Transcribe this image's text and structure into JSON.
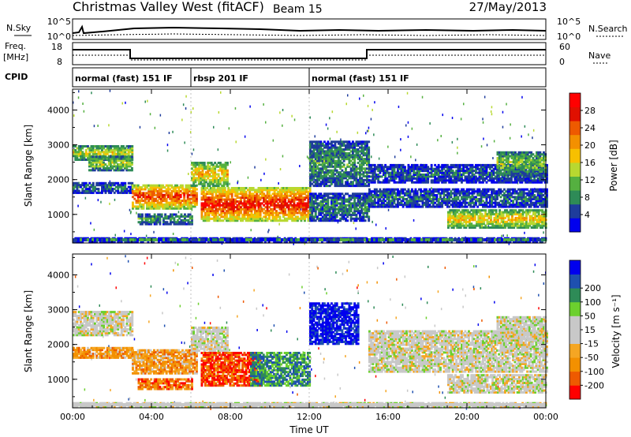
{
  "header": {
    "station": "Christmas Valley West (fitACF)",
    "beam": "Beam 15",
    "date": "27/May/2013"
  },
  "strip": {
    "nsky_label": "N.Sky",
    "nsky_ticks": [
      "10^5",
      "10^0"
    ],
    "nsearch_label": "N.Search",
    "nsearch_ticks": [
      "10^5",
      "10^0"
    ],
    "freq_label_1": "Freq.",
    "freq_label_2": "[MHz]",
    "freq_ticks": [
      "18",
      "8"
    ],
    "nave_label": "Nave",
    "nave_ticks": [
      "60",
      "0"
    ],
    "cpid_label": "CPID"
  },
  "cpid_segments": [
    {
      "label": "normal (fast) 151 IF",
      "start_h": 0,
      "end_h": 6
    },
    {
      "label": "rbsp 201 IF",
      "start_h": 6,
      "end_h": 12
    },
    {
      "label": "normal (fast) 151 IF",
      "start_h": 12,
      "end_h": 24
    }
  ],
  "colors": {
    "power": [
      "#0000ee",
      "#1e3c9c",
      "#2e8b57",
      "#55b040",
      "#b8d830",
      "#f7c000",
      "#f39000",
      "#ee5a00",
      "#e01000",
      "#ff0000"
    ],
    "velocity": [
      "#ff0000",
      "#ee5a00",
      "#f39000",
      "#f5a623",
      "#c8c8c8",
      "#c8c8c8",
      "#6cd02e",
      "#2e8b57",
      "#1e50b0",
      "#0000ee"
    ]
  },
  "chart_data": [
    {
      "type": "heatmap",
      "name": "power",
      "xlabel": "Time UT",
      "ylabel": "Slant Range [km]",
      "xlim": [
        0,
        24
      ],
      "ylim": [
        180,
        4600
      ],
      "x_ticks": [
        "00:00",
        "04:00",
        "08:00",
        "12:00",
        "16:00",
        "20:00",
        "00:00"
      ],
      "y_ticks": [
        1000,
        2000,
        3000,
        4000
      ],
      "colorbar_label": "Power [dB]",
      "colorbar_ticks": [
        "4",
        "8",
        "12",
        "16",
        "20",
        "24",
        "28"
      ],
      "colorbar_range": [
        0,
        32
      ],
      "bands": [
        {
          "t0": 0.0,
          "t1": 3.0,
          "r0": 2550,
          "r1": 2950,
          "level": 0.5
        },
        {
          "t0": 0.8,
          "t1": 3.0,
          "r0": 2250,
          "r1": 2650,
          "level": 0.45
        },
        {
          "t0": 0.0,
          "t1": 3.0,
          "r0": 1600,
          "r1": 1900,
          "level": 0.2
        },
        {
          "t0": 3.0,
          "t1": 6.3,
          "r0": 1150,
          "r1": 1850,
          "level": 0.85
        },
        {
          "t0": 6.0,
          "t1": 7.8,
          "r0": 1800,
          "r1": 2500,
          "level": 0.6
        },
        {
          "t0": 6.5,
          "t1": 12.0,
          "r0": 800,
          "r1": 1750,
          "level": 0.92
        },
        {
          "t0": 3.3,
          "t1": 6.0,
          "r0": 700,
          "r1": 1000,
          "level": 0.3
        },
        {
          "t0": 12.0,
          "t1": 15.0,
          "r0": 1800,
          "r1": 3100,
          "level": 0.3
        },
        {
          "t0": 12.0,
          "t1": 15.0,
          "r0": 800,
          "r1": 1600,
          "level": 0.25
        },
        {
          "t0": 15.0,
          "t1": 24.0,
          "r0": 1900,
          "r1": 2400,
          "level": 0.2
        },
        {
          "t0": 15.0,
          "t1": 24.0,
          "r0": 1200,
          "r1": 1700,
          "level": 0.22
        },
        {
          "t0": 19.0,
          "t1": 24.0,
          "r0": 600,
          "r1": 1100,
          "level": 0.6
        },
        {
          "t0": 21.5,
          "t1": 24.0,
          "r0": 2100,
          "r1": 2800,
          "level": 0.4
        },
        {
          "t0": 0.0,
          "t1": 24.0,
          "r0": 180,
          "r1": 300,
          "level": 0.15
        }
      ]
    },
    {
      "type": "heatmap",
      "name": "velocity",
      "xlabel": "Time UT",
      "ylabel": "Slant Range [km]",
      "xlim": [
        0,
        24
      ],
      "ylim": [
        180,
        4600
      ],
      "x_ticks": [
        "00:00",
        "04:00",
        "08:00",
        "12:00",
        "16:00",
        "20:00",
        "00:00"
      ],
      "y_ticks": [
        1000,
        2000,
        3000,
        4000
      ],
      "colorbar_label": "Velocity [m s⁻¹]",
      "colorbar_ticks": [
        "-200",
        "-100",
        "-50",
        "-15",
        "15",
        "50",
        "100",
        "200"
      ],
      "colorbar_range": [
        -250,
        250
      ],
      "bands": [
        {
          "t0": 0.0,
          "t1": 3.0,
          "r0": 2250,
          "r1": 2950,
          "level": 0.5
        },
        {
          "t0": 0.0,
          "t1": 3.0,
          "r0": 1600,
          "r1": 1900,
          "level": 0.28
        },
        {
          "t0": 3.0,
          "t1": 6.3,
          "r0": 1150,
          "r1": 1850,
          "level": 0.3
        },
        {
          "t0": 6.0,
          "t1": 7.8,
          "r0": 1800,
          "r1": 2500,
          "level": 0.5
        },
        {
          "t0": 6.5,
          "t1": 9.5,
          "r0": 800,
          "r1": 1750,
          "level": 0.12
        },
        {
          "t0": 9.0,
          "t1": 12.0,
          "r0": 800,
          "r1": 1750,
          "level": 0.75
        },
        {
          "t0": 12.0,
          "t1": 14.5,
          "r0": 2000,
          "r1": 3200,
          "level": 0.95
        },
        {
          "t0": 3.3,
          "t1": 6.0,
          "r0": 700,
          "r1": 1000,
          "level": 0.2
        },
        {
          "t0": 15.0,
          "t1": 24.0,
          "r0": 1200,
          "r1": 2400,
          "level": 0.5
        },
        {
          "t0": 19.0,
          "t1": 24.0,
          "r0": 600,
          "r1": 1100,
          "level": 0.5
        },
        {
          "t0": 21.5,
          "t1": 24.0,
          "r0": 2100,
          "r1": 2800,
          "level": 0.5
        },
        {
          "t0": 0.0,
          "t1": 24.0,
          "r0": 180,
          "r1": 300,
          "level": 0.5
        }
      ]
    }
  ]
}
